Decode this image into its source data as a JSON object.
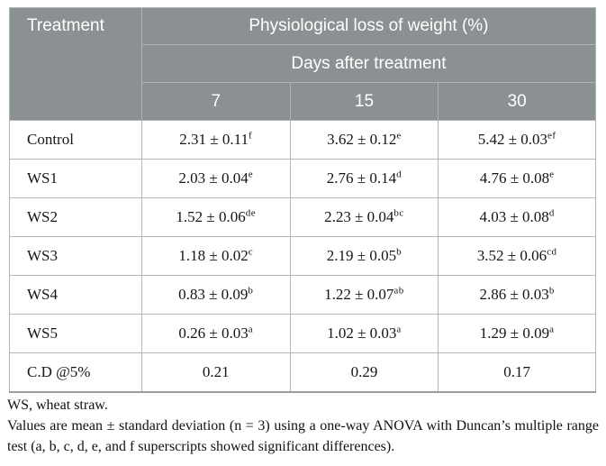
{
  "table": {
    "header": {
      "treatment_label": "Treatment",
      "main_title": "Physiological loss of weight (%)",
      "sub_title": "Days after treatment",
      "day_columns": [
        "7",
        "15",
        "30"
      ]
    },
    "rows": [
      {
        "treatment": "Control",
        "cells": [
          {
            "value": "2.31 ± 0.11",
            "sup": "f"
          },
          {
            "value": "3.62 ± 0.12",
            "sup": "e"
          },
          {
            "value": "5.42 ± 0.03",
            "sup": "ef"
          }
        ]
      },
      {
        "treatment": "WS1",
        "cells": [
          {
            "value": "2.03 ± 0.04",
            "sup": "e"
          },
          {
            "value": "2.76 ± 0.14",
            "sup": "d"
          },
          {
            "value": "4.76 ± 0.08",
            "sup": "e"
          }
        ]
      },
      {
        "treatment": "WS2",
        "cells": [
          {
            "value": "1.52 ± 0.06",
            "sup": "de"
          },
          {
            "value": "2.23 ± 0.04",
            "sup": "bc"
          },
          {
            "value": "4.03 ± 0.08",
            "sup": "d"
          }
        ]
      },
      {
        "treatment": "WS3",
        "cells": [
          {
            "value": "1.18 ± 0.02",
            "sup": "c"
          },
          {
            "value": "2.19 ± 0.05",
            "sup": "b"
          },
          {
            "value": "3.52 ± 0.06",
            "sup": "cd"
          }
        ]
      },
      {
        "treatment": "WS4",
        "cells": [
          {
            "value": "0.83 ± 0.09",
            "sup": "b"
          },
          {
            "value": "1.22 ± 0.07",
            "sup": "ab"
          },
          {
            "value": "2.86 ± 0.03",
            "sup": "b"
          }
        ]
      },
      {
        "treatment": "WS5",
        "cells": [
          {
            "value": "0.26 ± 0.03",
            "sup": "a"
          },
          {
            "value": "1.02 ± 0.03",
            "sup": "a"
          },
          {
            "value": "1.29 ± 0.09",
            "sup": "a"
          }
        ]
      },
      {
        "treatment": "C.D @5%",
        "cells": [
          {
            "value": "0.21",
            "sup": ""
          },
          {
            "value": "0.29",
            "sup": ""
          },
          {
            "value": "0.17",
            "sup": ""
          }
        ]
      }
    ]
  },
  "chart_data": {
    "type": "table",
    "title": "Physiological loss of weight (%)",
    "column_group_label": "Days after treatment",
    "columns": [
      "Treatment",
      "7",
      "15",
      "30"
    ],
    "rows": [
      [
        "Control",
        "2.31 ± 0.11 f",
        "3.62 ± 0.12 e",
        "5.42 ± 0.03 ef"
      ],
      [
        "WS1",
        "2.03 ± 0.04 e",
        "2.76 ± 0.14 d",
        "4.76 ± 0.08 e"
      ],
      [
        "WS2",
        "1.52 ± 0.06 de",
        "2.23 ± 0.04 bc",
        "4.03 ± 0.08 d"
      ],
      [
        "WS3",
        "1.18 ± 0.02 c",
        "2.19 ± 0.05 b",
        "3.52 ± 0.06 cd"
      ],
      [
        "WS4",
        "0.83 ± 0.09 b",
        "1.22 ± 0.07 ab",
        "2.86 ± 0.03 b"
      ],
      [
        "WS5",
        "0.26 ± 0.03 a",
        "1.02 ± 0.03 a",
        "1.29 ± 0.09 a"
      ],
      [
        "C.D @5%",
        "0.21",
        "0.29",
        "0.17"
      ]
    ]
  },
  "footnotes": {
    "line1": "WS, wheat straw.",
    "line2": "Values are mean ± standard deviation (n = 3) using a one-way ANOVA with Duncan’s multiple range test (a, b, c, d, e, and f superscripts showed significant differences)."
  },
  "colors": {
    "header_bg": "#8b9192",
    "header_text": "#ffffff",
    "header_divider": "#aeb3b4",
    "body_border": "#b3b6b6",
    "body_text": "#151515"
  }
}
